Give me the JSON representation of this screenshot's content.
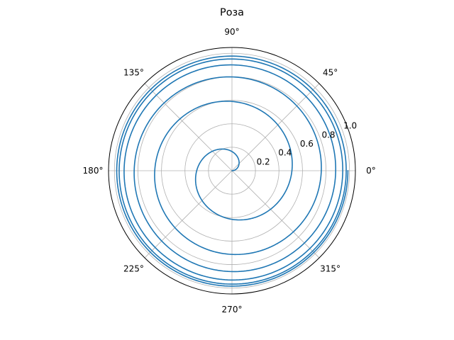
{
  "chart_data": {
    "type": "line",
    "projection": "polar",
    "title": "Роза",
    "angle_ticks": [
      {
        "deg": 0,
        "label": "0°"
      },
      {
        "deg": 45,
        "label": "45°"
      },
      {
        "deg": 90,
        "label": "90°"
      },
      {
        "deg": 135,
        "label": "135°"
      },
      {
        "deg": 180,
        "label": "180°"
      },
      {
        "deg": 225,
        "label": "225°"
      },
      {
        "deg": 270,
        "label": "270°"
      },
      {
        "deg": 315,
        "label": "315°"
      }
    ],
    "radial_ticks": [
      {
        "value": 0.2,
        "label": "0.2"
      },
      {
        "value": 0.4,
        "label": "0.4"
      },
      {
        "value": 0.6,
        "label": "0.6"
      },
      {
        "value": 0.8,
        "label": "0.8"
      },
      {
        "value": 1.0,
        "label": "1.0"
      }
    ],
    "rlim": [
      0,
      1.05
    ],
    "grid": true,
    "series": [
      {
        "color": "#1f77b4",
        "r_formula": "1 - 0.7^(theta/pi)",
        "theta_range": [
          0,
          37.7
        ]
      }
    ]
  }
}
